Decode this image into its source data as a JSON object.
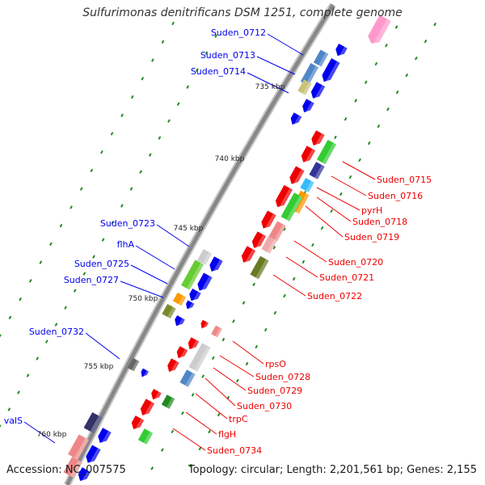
{
  "title": "Sulfurimonas denitrificans DSM 1251, complete genome",
  "footer": {
    "accession": "Accession: NC_007575",
    "info": "Topology: circular; Length: 2,201,561 bp; Genes: 2,155"
  },
  "colors": {
    "positive_strand": "#0000ee",
    "negative_strand": "#ee0000",
    "backbone": "#888888",
    "tick_dot": "#228b22"
  },
  "ticks": [
    "735 kbp",
    "740 kbp",
    "745 kbp",
    "750 kbp",
    "755 kbp",
    "760 kbp"
  ],
  "labels_positive": [
    "Suden_0712",
    "Suden_0713",
    "Suden_0714",
    "Suden_0723",
    "flhA",
    "Suden_0725",
    "Suden_0727",
    "Suden_0732",
    "valS"
  ],
  "labels_negative": [
    "Suden_0715",
    "Suden_0716",
    "pyrH",
    "Suden_0718",
    "Suden_0719",
    "Suden_0720",
    "Suden_0721",
    "Suden_0722",
    "rpsO",
    "Suden_0728",
    "Suden_0729",
    "Suden_0730",
    "trpC",
    "flgH",
    "Suden_0734"
  ]
}
